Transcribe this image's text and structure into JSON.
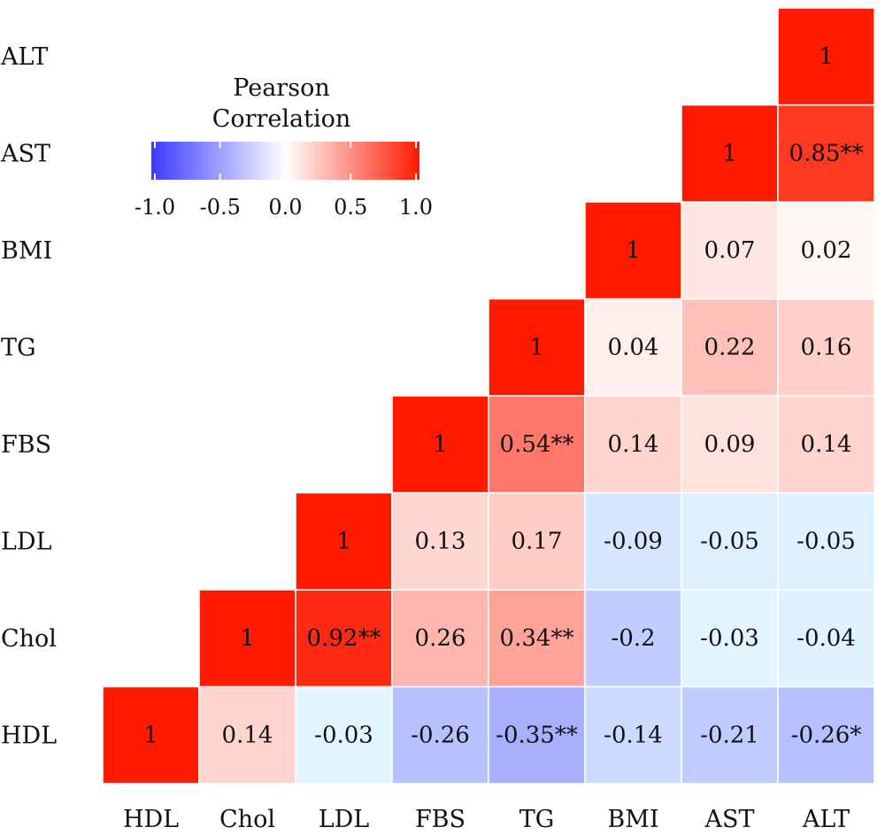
{
  "chart_data": {
    "type": "heatmap",
    "variables": [
      "HDL",
      "Chol",
      "LDL",
      "FBS",
      "TG",
      "BMI",
      "AST",
      "ALT"
    ],
    "row_order_top_to_bottom": [
      "ALT",
      "AST",
      "BMI",
      "TG",
      "FBS",
      "LDL",
      "Chol",
      "HDL"
    ],
    "matrix_shape": "upper-right triangle",
    "cells": [
      {
        "row": "HDL",
        "col": "HDL",
        "value": 1,
        "label": "1"
      },
      {
        "row": "HDL",
        "col": "Chol",
        "value": 0.14,
        "label": "0.14"
      },
      {
        "row": "HDL",
        "col": "LDL",
        "value": -0.03,
        "label": "-0.03"
      },
      {
        "row": "HDL",
        "col": "FBS",
        "value": -0.26,
        "label": "-0.26"
      },
      {
        "row": "HDL",
        "col": "TG",
        "value": -0.35,
        "label": "-0.35**"
      },
      {
        "row": "HDL",
        "col": "BMI",
        "value": -0.14,
        "label": "-0.14"
      },
      {
        "row": "HDL",
        "col": "AST",
        "value": -0.21,
        "label": "-0.21"
      },
      {
        "row": "HDL",
        "col": "ALT",
        "value": -0.26,
        "label": "-0.26*"
      },
      {
        "row": "Chol",
        "col": "Chol",
        "value": 1,
        "label": "1"
      },
      {
        "row": "Chol",
        "col": "LDL",
        "value": 0.92,
        "label": "0.92**"
      },
      {
        "row": "Chol",
        "col": "FBS",
        "value": 0.26,
        "label": "0.26"
      },
      {
        "row": "Chol",
        "col": "TG",
        "value": 0.34,
        "label": "0.34**"
      },
      {
        "row": "Chol",
        "col": "BMI",
        "value": -0.2,
        "label": "-0.2"
      },
      {
        "row": "Chol",
        "col": "AST",
        "value": -0.03,
        "label": "-0.03"
      },
      {
        "row": "Chol",
        "col": "ALT",
        "value": -0.04,
        "label": "-0.04"
      },
      {
        "row": "LDL",
        "col": "LDL",
        "value": 1,
        "label": "1"
      },
      {
        "row": "LDL",
        "col": "FBS",
        "value": 0.13,
        "label": "0.13"
      },
      {
        "row": "LDL",
        "col": "TG",
        "value": 0.17,
        "label": "0.17"
      },
      {
        "row": "LDL",
        "col": "BMI",
        "value": -0.09,
        "label": "-0.09"
      },
      {
        "row": "LDL",
        "col": "AST",
        "value": -0.05,
        "label": "-0.05"
      },
      {
        "row": "LDL",
        "col": "ALT",
        "value": -0.05,
        "label": "-0.05"
      },
      {
        "row": "FBS",
        "col": "FBS",
        "value": 1,
        "label": "1"
      },
      {
        "row": "FBS",
        "col": "TG",
        "value": 0.54,
        "label": "0.54**"
      },
      {
        "row": "FBS",
        "col": "BMI",
        "value": 0.14,
        "label": "0.14"
      },
      {
        "row": "FBS",
        "col": "AST",
        "value": 0.09,
        "label": "0.09"
      },
      {
        "row": "FBS",
        "col": "ALT",
        "value": 0.14,
        "label": "0.14"
      },
      {
        "row": "TG",
        "col": "TG",
        "value": 1,
        "label": "1"
      },
      {
        "row": "TG",
        "col": "BMI",
        "value": 0.04,
        "label": "0.04"
      },
      {
        "row": "TG",
        "col": "AST",
        "value": 0.22,
        "label": "0.22"
      },
      {
        "row": "TG",
        "col": "ALT",
        "value": 0.16,
        "label": "0.16"
      },
      {
        "row": "BMI",
        "col": "BMI",
        "value": 1,
        "label": "1"
      },
      {
        "row": "BMI",
        "col": "AST",
        "value": 0.07,
        "label": "0.07"
      },
      {
        "row": "BMI",
        "col": "ALT",
        "value": 0.02,
        "label": "0.02"
      },
      {
        "row": "AST",
        "col": "AST",
        "value": 1,
        "label": "1"
      },
      {
        "row": "AST",
        "col": "ALT",
        "value": 0.85,
        "label": "0.85**"
      },
      {
        "row": "ALT",
        "col": "ALT",
        "value": 1,
        "label": "1"
      }
    ],
    "legend": {
      "title_lines": [
        "Pearson",
        "Correlation"
      ],
      "ticks": [
        "-1.0",
        "-0.5",
        "0.0",
        "0.5",
        "1.0"
      ],
      "range": [
        -1,
        1
      ],
      "placement": "top-left",
      "color_low": "#3b3bff",
      "color_mid": "#ffffff",
      "color_high": "#ff1a00"
    },
    "grid": false
  }
}
